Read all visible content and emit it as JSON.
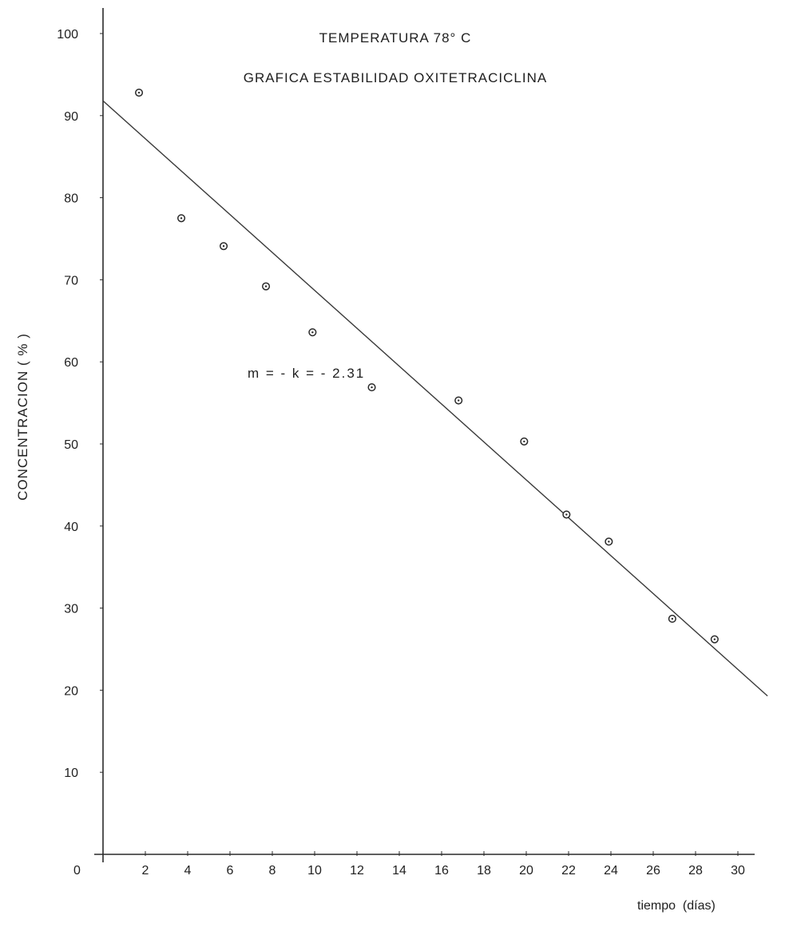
{
  "chart_data": {
    "type": "scatter",
    "title": "TEMPERATURA  78° C",
    "subtitle": "GRAFICA  ESTABILIDAD  OXITETRACICLINA",
    "xlabel": "tiempo  (días)",
    "ylabel": "CONCENTRACION  ( % )",
    "annotation": "m = - k = - 2.31",
    "x_ticks": [
      2,
      4,
      6,
      8,
      10,
      12,
      14,
      16,
      18,
      20,
      22,
      24,
      26,
      28,
      30
    ],
    "x_tick_labels": [
      "2",
      "4",
      "6",
      "8",
      "10",
      "12",
      "14",
      "16",
      "18",
      "20",
      "22",
      "24",
      "26",
      "28",
      "30"
    ],
    "y_ticks": [
      10,
      20,
      30,
      40,
      50,
      60,
      70,
      80,
      90,
      100
    ],
    "y_tick_labels": [
      "10",
      "20",
      "30",
      "40",
      "50",
      "60",
      "70",
      "80",
      "90",
      "100"
    ],
    "origin_label": "0",
    "xlim": [
      0,
      31.5
    ],
    "ylim": [
      0,
      100
    ],
    "grid": false,
    "series": [
      {
        "type": "scatter",
        "x": [
          1.7,
          3.7,
          5.7,
          7.7,
          9.9,
          12.7,
          16.8,
          19.9,
          21.9,
          23.9,
          26.9,
          28.9
        ],
        "y": [
          92.8,
          77.5,
          74.1,
          69.2,
          63.6,
          56.9,
          55.3,
          50.3,
          41.4,
          38.1,
          28.7,
          26.2
        ]
      },
      {
        "type": "line",
        "x": [
          0,
          31.4
        ],
        "y": [
          91.8,
          19.3
        ]
      }
    ]
  }
}
